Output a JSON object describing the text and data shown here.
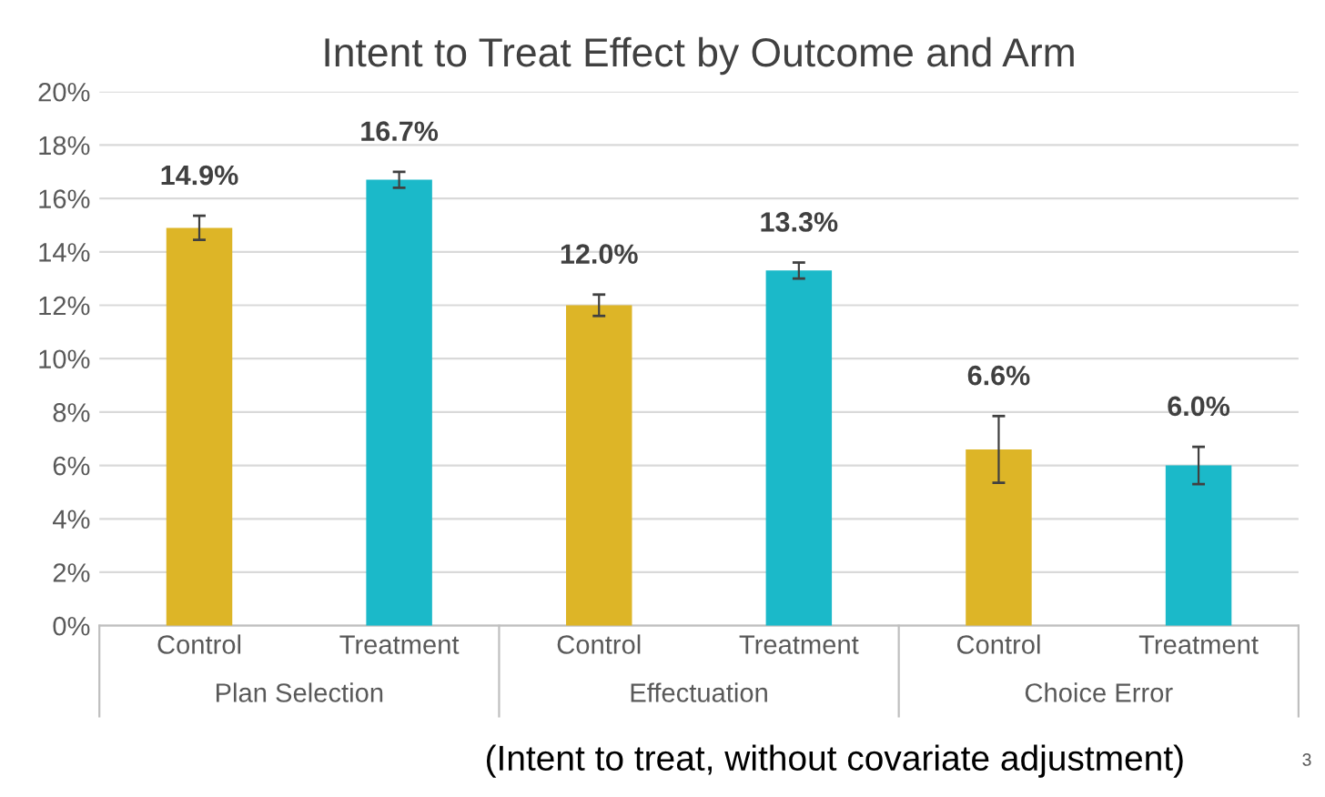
{
  "chart_data": {
    "type": "bar",
    "title": "Intent to Treat Effect by Outcome and Arm",
    "categories": [
      "Control",
      "Treatment",
      "Control",
      "Treatment",
      "Control",
      "Treatment"
    ],
    "values": [
      14.9,
      16.7,
      12.0,
      13.3,
      6.6,
      6.0
    ],
    "colors": [
      "#ddb527",
      "#1bb9c9",
      "#ddb527",
      "#1bb9c9",
      "#ddb527",
      "#1bb9c9"
    ],
    "errors": [
      0.45,
      0.3,
      0.4,
      0.3,
      1.25,
      0.7
    ],
    "value_labels": [
      "14.9%",
      "16.7%",
      "12.0%",
      "13.3%",
      "6.6%",
      "6.0%"
    ],
    "ylim": [
      0,
      20
    ],
    "yticks": [
      {
        "value": 0,
        "label": "0%"
      },
      {
        "value": 2,
        "label": "2%"
      },
      {
        "value": 4,
        "label": "4%"
      },
      {
        "value": 6,
        "label": "6%"
      },
      {
        "value": 8,
        "label": "8%"
      },
      {
        "value": 10,
        "label": "10%"
      },
      {
        "value": 12,
        "label": "12%"
      },
      {
        "value": 14,
        "label": "14%"
      },
      {
        "value": 16,
        "label": "16%"
      },
      {
        "value": 18,
        "label": "18%"
      },
      {
        "value": 20,
        "label": "20%"
      }
    ],
    "grid": "y",
    "annotations": [
      "Plan Selection",
      "Effectuation",
      "Choice Error",
      "(Intent to treat, without covariate adjustment)",
      "3"
    ]
  }
}
